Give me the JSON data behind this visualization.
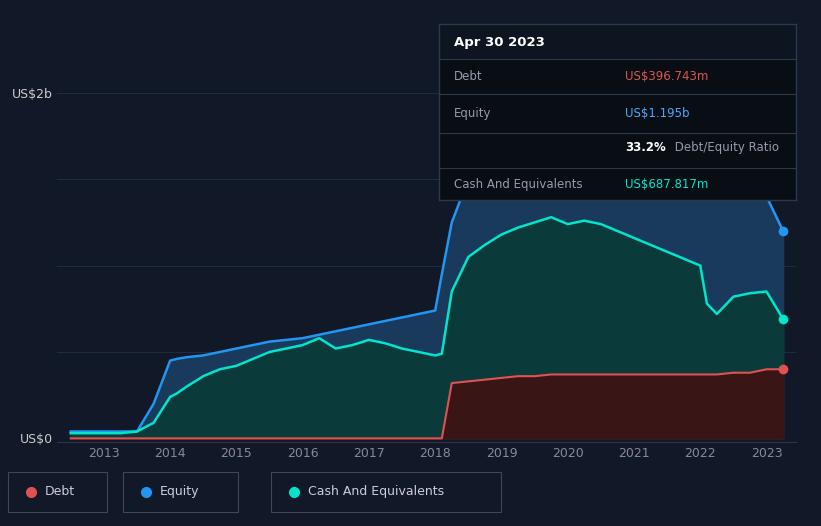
{
  "background_color": "#111827",
  "plot_bg_color": "#111827",
  "title_box": {
    "date": "Apr 30 2023",
    "debt_label": "Debt",
    "debt_value": "US$396.743m",
    "debt_color": "#e05252",
    "equity_label": "Equity",
    "equity_value": "US$1.195b",
    "equity_color": "#4da6ff",
    "ratio_value": "33.2%",
    "ratio_label": " Debt/Equity Ratio",
    "cash_label": "Cash And Equivalents",
    "cash_value": "US$687.817m",
    "cash_color": "#00e5cc"
  },
  "y_label_top": "US$2b",
  "y_label_bottom": "US$0",
  "x_ticks": [
    "2013",
    "2014",
    "2015",
    "2016",
    "2017",
    "2018",
    "2019",
    "2020",
    "2021",
    "2022",
    "2023"
  ],
  "equity_color": "#2196f3",
  "equity_fill": "#1a3a5c",
  "cash_color": "#00e5cc",
  "cash_fill": "#0a3a3a",
  "debt_color": "#e05252",
  "debt_fill": "#3a1515",
  "legend_items": [
    {
      "label": "Debt",
      "color": "#e05252"
    },
    {
      "label": "Equity",
      "color": "#2196f3"
    },
    {
      "label": "Cash And Equivalents",
      "color": "#00e5cc"
    }
  ],
  "years": [
    2012.5,
    2012.75,
    2013.0,
    2013.25,
    2013.5,
    2013.75,
    2014.0,
    2014.1,
    2014.25,
    2014.5,
    2014.75,
    2015.0,
    2015.25,
    2015.5,
    2015.75,
    2016.0,
    2016.25,
    2016.5,
    2016.75,
    2017.0,
    2017.25,
    2017.5,
    2017.75,
    2018.0,
    2018.1,
    2018.25,
    2018.5,
    2018.75,
    2019.0,
    2019.25,
    2019.5,
    2019.75,
    2020.0,
    2020.25,
    2020.5,
    2020.75,
    2021.0,
    2021.25,
    2021.5,
    2021.75,
    2022.0,
    2022.1,
    2022.25,
    2022.5,
    2022.75,
    2023.0,
    2023.25
  ],
  "equity": [
    0.04,
    0.04,
    0.04,
    0.04,
    0.04,
    0.2,
    0.45,
    0.46,
    0.47,
    0.48,
    0.5,
    0.52,
    0.54,
    0.56,
    0.57,
    0.58,
    0.6,
    0.62,
    0.64,
    0.66,
    0.68,
    0.7,
    0.72,
    0.74,
    0.95,
    1.25,
    1.5,
    1.6,
    1.65,
    1.68,
    1.72,
    1.76,
    1.79,
    1.84,
    1.88,
    1.9,
    1.93,
    1.91,
    1.88,
    1.84,
    1.82,
    1.6,
    1.56,
    1.52,
    1.48,
    1.4,
    1.2
  ],
  "cash": [
    0.03,
    0.03,
    0.03,
    0.03,
    0.04,
    0.09,
    0.24,
    0.26,
    0.3,
    0.36,
    0.4,
    0.42,
    0.46,
    0.5,
    0.52,
    0.54,
    0.58,
    0.52,
    0.54,
    0.57,
    0.55,
    0.52,
    0.5,
    0.48,
    0.49,
    0.85,
    1.05,
    1.12,
    1.18,
    1.22,
    1.25,
    1.28,
    1.24,
    1.26,
    1.24,
    1.2,
    1.16,
    1.12,
    1.08,
    1.04,
    1.0,
    0.78,
    0.72,
    0.82,
    0.84,
    0.85,
    0.69
  ],
  "debt": [
    0.0,
    0.0,
    0.0,
    0.0,
    0.0,
    0.0,
    0.0,
    0.0,
    0.0,
    0.0,
    0.0,
    0.0,
    0.0,
    0.0,
    0.0,
    0.0,
    0.0,
    0.0,
    0.0,
    0.0,
    0.0,
    0.0,
    0.0,
    0.0,
    0.0,
    0.32,
    0.33,
    0.34,
    0.35,
    0.36,
    0.36,
    0.37,
    0.37,
    0.37,
    0.37,
    0.37,
    0.37,
    0.37,
    0.37,
    0.37,
    0.37,
    0.37,
    0.37,
    0.38,
    0.38,
    0.4,
    0.4
  ]
}
